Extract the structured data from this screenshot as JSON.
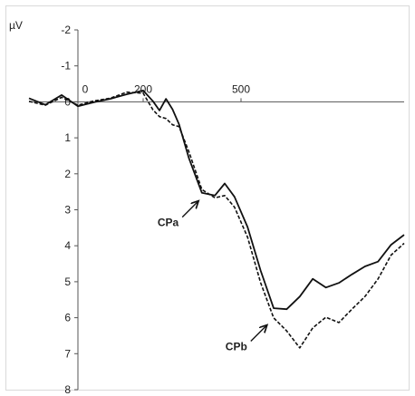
{
  "chart_data": {
    "type": "line",
    "ylabel": "µV",
    "y_inverted": true,
    "xlim": [
      -150,
      1000
    ],
    "ylim": [
      -2,
      8
    ],
    "x_ticks": [
      "0",
      "200",
      "500"
    ],
    "y_ticks": [
      "-2",
      "-1",
      "0",
      "1",
      "2",
      "3",
      "4",
      "5",
      "6",
      "7",
      "8"
    ],
    "grid": false,
    "legend": "none",
    "series": [
      {
        "style": "solid",
        "color": "#111111",
        "x": [
          -150,
          -100,
          -50,
          0,
          50,
          100,
          150,
          200,
          230,
          250,
          270,
          290,
          310,
          340,
          380,
          420,
          450,
          480,
          520,
          560,
          600,
          640,
          680,
          720,
          760,
          800,
          840,
          880,
          920,
          960,
          1000
        ],
        "y": [
          -0.1,
          0.05,
          -0.15,
          0.1,
          0.0,
          -0.05,
          -0.25,
          -0.3,
          0.0,
          0.2,
          -0.05,
          0.2,
          0.6,
          1.6,
          2.5,
          2.6,
          2.3,
          2.6,
          3.5,
          4.7,
          5.7,
          5.8,
          5.4,
          4.9,
          5.2,
          5.0,
          4.8,
          4.6,
          4.4,
          4.0,
          3.7
        ]
      },
      {
        "style": "dashed",
        "color": "#111111",
        "x": [
          -150,
          -100,
          -50,
          0,
          50,
          100,
          150,
          200,
          230,
          250,
          270,
          290,
          310,
          340,
          380,
          420,
          450,
          480,
          520,
          560,
          600,
          640,
          680,
          720,
          760,
          800,
          840,
          880,
          920,
          960,
          1000
        ],
        "y": [
          -0.05,
          0.1,
          -0.1,
          0.05,
          0.0,
          -0.1,
          -0.3,
          -0.2,
          0.2,
          0.4,
          0.5,
          0.6,
          0.7,
          1.4,
          2.4,
          2.7,
          2.6,
          2.9,
          3.8,
          5.0,
          6.0,
          6.4,
          6.8,
          6.3,
          6.0,
          6.1,
          5.8,
          5.4,
          4.9,
          4.3,
          3.9
        ]
      }
    ],
    "annotations": [
      {
        "label": "CPa",
        "tip_x": 370,
        "tip_y": 2.75
      },
      {
        "label": "CPb",
        "tip_x": 580,
        "tip_y": 6.2
      }
    ]
  }
}
